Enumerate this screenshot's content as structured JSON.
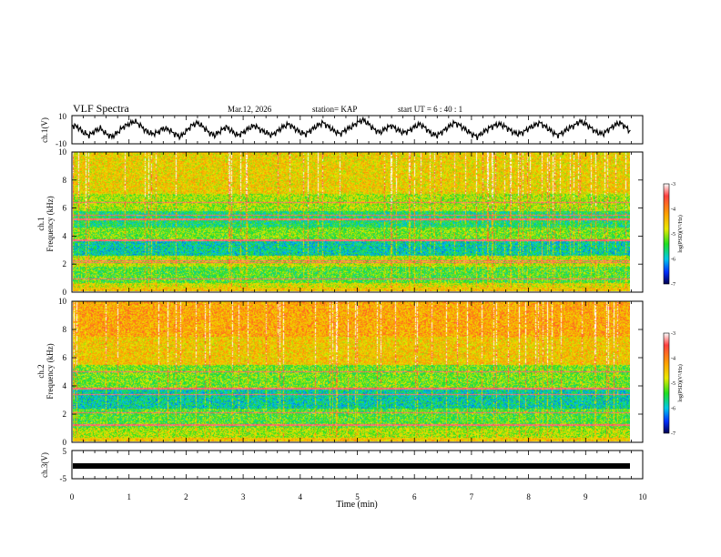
{
  "header": {
    "title": "VLF Spectra",
    "date": "Mar.12, 2026",
    "station": "station= KAP",
    "start": "start  UT =   6  : 40 : 1"
  },
  "chart_data": [
    {
      "type": "line",
      "name": "ch1-voltage",
      "ylabel": "ch.1(V)",
      "ylim": [
        -10,
        10
      ],
      "ytick_labels": [
        "10",
        "-10"
      ],
      "xlim": [
        0,
        10
      ],
      "description_values_note": "waveform values in volts, sampled every 0.1 min",
      "x": [
        0,
        0.1,
        0.2,
        0.3,
        0.4,
        0.5,
        0.6,
        0.7,
        0.8,
        0.9,
        1.0,
        1.1,
        1.2,
        1.3,
        1.4,
        1.5,
        1.6,
        1.7,
        1.8,
        1.9,
        2.0,
        2.1,
        2.2,
        2.3,
        2.4,
        2.5,
        2.6,
        2.7,
        2.8,
        2.9,
        3.0,
        3.1,
        3.2,
        3.3,
        3.4,
        3.5,
        3.6,
        3.7,
        3.8,
        3.9,
        4.0,
        4.1,
        4.2,
        4.3,
        4.4,
        4.5,
        4.6,
        4.7,
        4.8,
        4.9,
        5.0,
        5.1,
        5.2,
        5.3,
        5.4,
        5.5,
        5.6,
        5.7,
        5.8,
        5.9,
        6.0,
        6.1,
        6.2,
        6.3,
        6.4,
        6.5,
        6.6,
        6.7,
        6.8,
        6.9,
        7.0,
        7.1,
        7.2,
        7.3,
        7.4,
        7.5,
        7.6,
        7.7,
        7.8,
        7.9,
        8.0,
        8.1,
        8.2,
        8.3,
        8.4,
        8.5,
        8.6,
        8.7,
        8.8,
        8.9,
        9.0,
        9.1,
        9.2,
        9.3,
        9.4,
        9.5,
        9.6,
        9.7,
        9.8
      ],
      "values": [
        3,
        2,
        -2,
        -4,
        -1,
        1,
        -3,
        -5,
        -2,
        2,
        4,
        6,
        3,
        -1,
        -3,
        -2,
        1,
        0,
        -3,
        -5,
        -1,
        3,
        5,
        2,
        -2,
        -4,
        -1,
        2,
        -1,
        -4,
        -2,
        1,
        3,
        0,
        -2,
        -4,
        -1,
        2,
        4,
        1,
        -2,
        -3,
        0,
        3,
        5,
        2,
        -1,
        -3,
        0,
        2,
        5,
        7,
        4,
        0,
        -2,
        1,
        3,
        0,
        -2,
        -1,
        2,
        4,
        1,
        -3,
        -4,
        -1,
        2,
        5,
        3,
        0,
        -3,
        -5,
        -2,
        1,
        3,
        4,
        2,
        -1,
        -3,
        -2,
        1,
        3,
        5,
        2,
        -1,
        -4,
        -2,
        1,
        3,
        6,
        4,
        1,
        -2,
        -3,
        0,
        3,
        5,
        2,
        -2
      ]
    },
    {
      "type": "heatmap",
      "name": "ch1-spectrogram",
      "ylabel": "ch.1 Frequency (kHz)",
      "ylim": [
        0,
        10
      ],
      "yticks": [
        0,
        2,
        4,
        6,
        8,
        10
      ],
      "xlim": [
        0,
        10
      ],
      "colorbar": {
        "label": "log(PSD)(V²/Hz)",
        "range": [
          -7,
          -3
        ],
        "ticks": [
          "-3",
          "-4",
          "-5",
          "-6",
          "-7"
        ]
      }
    },
    {
      "type": "heatmap",
      "name": "ch2-spectrogram",
      "ylabel": "ch.2 Frequency (kHz)",
      "ylim": [
        0,
        10
      ],
      "yticks": [
        0,
        2,
        4,
        6,
        8,
        10
      ],
      "xlim": [
        0,
        10
      ],
      "colorbar": {
        "label": "log(PSD)(V²/Hz)",
        "range": [
          -7,
          -3
        ],
        "ticks": [
          "-3",
          "-4",
          "-5",
          "-6",
          "-7"
        ]
      }
    },
    {
      "type": "line",
      "name": "ch3-voltage",
      "ylabel": "ch.3(V)",
      "ylim": [
        -5,
        5
      ],
      "ytick_labels": [
        "5",
        "-5"
      ],
      "xlim": [
        0,
        10
      ],
      "values_note": "approximately constant near -0.5 V",
      "level": -0.5
    }
  ],
  "xaxis": {
    "label": "Time  (min)",
    "ticks": [
      "0",
      "1",
      "2",
      "3",
      "4",
      "5",
      "6",
      "7",
      "8",
      "9",
      "10"
    ]
  },
  "colors": {
    "line": "#000000",
    "background": "#ffffff"
  }
}
